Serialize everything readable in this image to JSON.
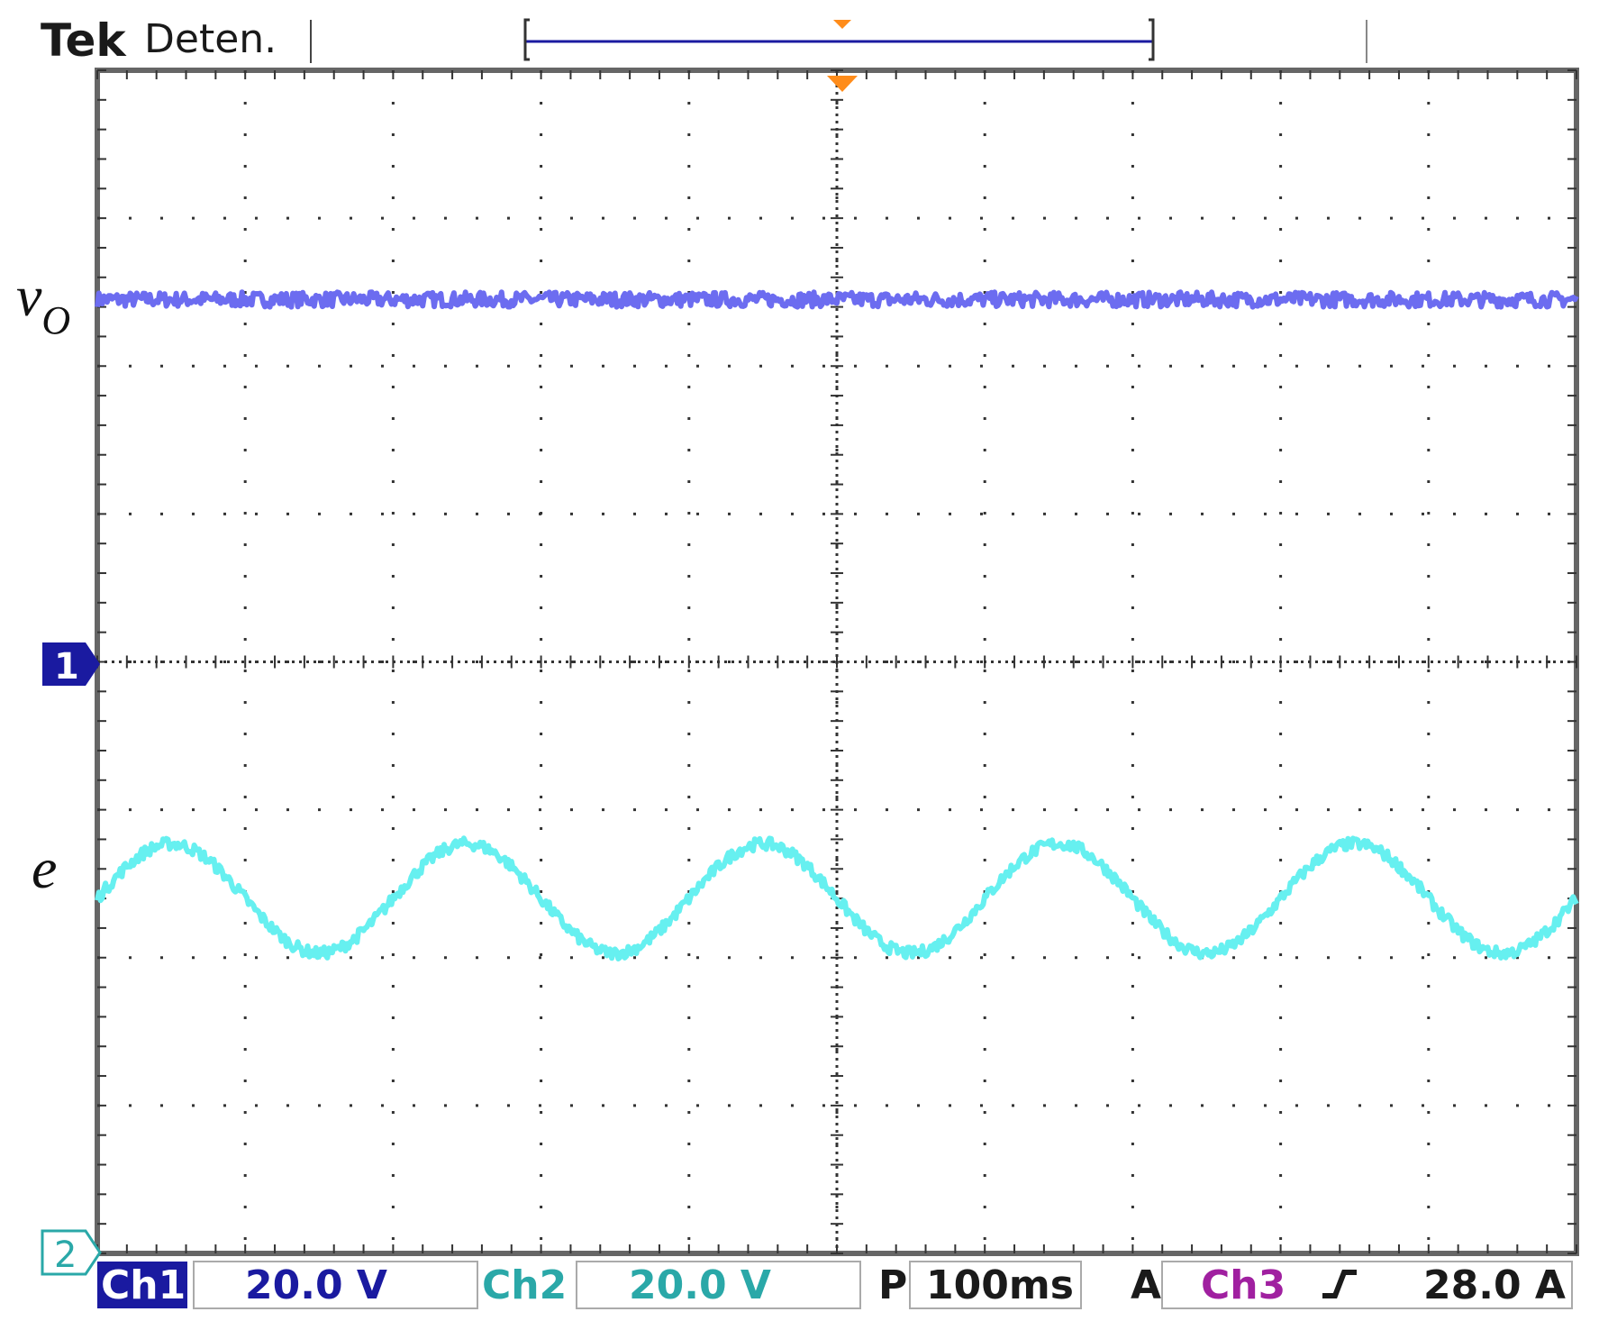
{
  "header": {
    "brand": "Tek",
    "run_state": "Deten."
  },
  "markers": {
    "ch1": "1",
    "ch2": "2"
  },
  "labels": {
    "vo_main": "v",
    "vo_sub": "O",
    "e": "e"
  },
  "status_bar": {
    "ch1_name": "Ch1",
    "ch1_scale": "20.0 V",
    "ch2_name": "Ch2",
    "ch2_scale": "20.0 V",
    "time_prefix": "P",
    "timebase": "100ms",
    "trigger_mode": "A",
    "trigger_source": "Ch3",
    "trigger_slope_icon": "rising-edge-icon",
    "trigger_level": "28.0 A"
  },
  "colors": {
    "ch1": "#6c6cf0",
    "ch2": "#66f0f0",
    "ch1_badge": "#1a1aa0",
    "ch2_text": "#2aa8a8",
    "ch3_text": "#a020a0",
    "trigger": "#ff8c1a",
    "graticule": "#333333"
  },
  "chart_data": {
    "type": "line",
    "title": "",
    "xlabel": "",
    "ylabel": "",
    "grid": true,
    "x_divisions": 10,
    "y_divisions": 8,
    "xlim": [
      0,
      10
    ],
    "ylim": [
      -4,
      4
    ],
    "series": [
      {
        "name": "vo",
        "channel": "Ch1",
        "kind": "dc",
        "level_div": 2.45,
        "noise_div": 0.05
      },
      {
        "name": "e",
        "channel": "Ch2",
        "kind": "sine",
        "offset_div": -1.6,
        "amplitude_div": 0.37,
        "cycles": 5.0,
        "start_x_div": 0.0,
        "first_peak_x_div": 0.5,
        "noise_div": 0.04
      }
    ]
  }
}
